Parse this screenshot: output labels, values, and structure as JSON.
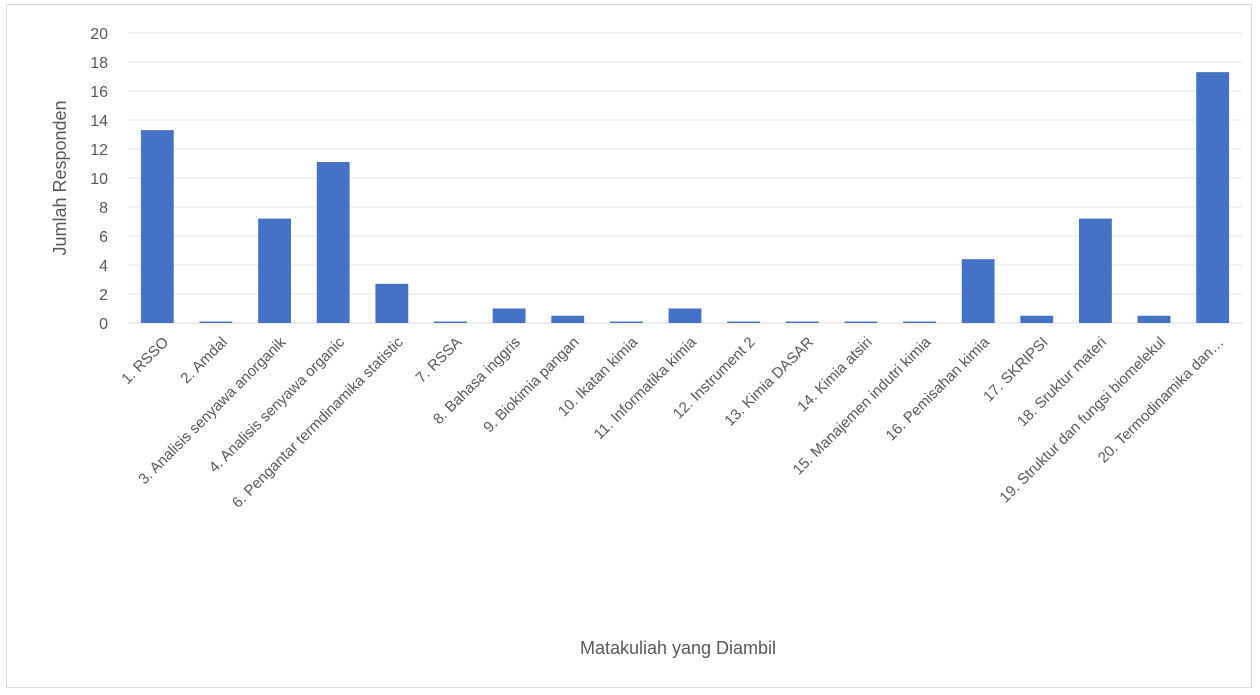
{
  "chart_data": {
    "type": "bar",
    "title": "",
    "xlabel": "Matakuliah yang Diambil",
    "ylabel": "Jumlah Responden",
    "ylim": [
      0,
      20
    ],
    "yticks": [
      0,
      2,
      4,
      6,
      8,
      10,
      12,
      14,
      16,
      18,
      20
    ],
    "grid": true,
    "legend": "none",
    "bar_color": "#4472c4",
    "categories": [
      "1.    RSSO",
      "2.    Amdal",
      "3.    Analisis senyawa anorganik",
      "4.    Analisis senyawa organic",
      "6.    Pengantar termdinamika statistic",
      "7.    RSSA",
      "8.    Bahasa inggris",
      "9.    Biokimia pangan",
      "10.  Ikatan kimia",
      "11.  Informatika kimia",
      "12.  Instrument 2",
      "13.  Kimia DASAR",
      "14.  Kimia atsiri",
      "15.  Manajemen indutri kimia",
      "16.  Pemisahan kimia",
      "17.  SKRIPSI",
      "18.  Sruktur materi",
      "19.  Struktur dan fungsi biomelekul",
      "20.  Termodinamika dan…"
    ],
    "values": [
      13.3,
      0.1,
      7.2,
      11.1,
      2.7,
      0.1,
      1.0,
      0.5,
      0.1,
      1.0,
      0.1,
      0.1,
      0.1,
      0.1,
      4.4,
      0.5,
      7.2,
      0.5,
      17.3
    ]
  }
}
